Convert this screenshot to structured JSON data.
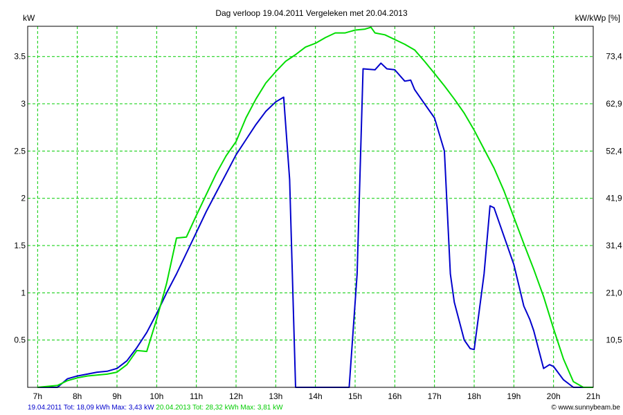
{
  "chart_data": {
    "type": "line",
    "title": "Dag  verloop 19.04.2011   Vergeleken met 20.04.2013",
    "ylabel_left": "kW",
    "ylabel_right": "kW/kWp [%]",
    "xlabel": "",
    "xlim": [
      6.75,
      21
    ],
    "ylim": [
      0,
      3.82
    ],
    "grid": true,
    "grid_color": "#00cc00",
    "x_ticks": [
      7,
      8,
      9,
      10,
      11,
      12,
      13,
      14,
      15,
      16,
      17,
      18,
      19,
      20,
      21
    ],
    "x_tick_labels": [
      "7h",
      "8h",
      "9h",
      "10h",
      "11h",
      "12h",
      "13h",
      "14h",
      "15h",
      "16h",
      "17h",
      "18h",
      "19h",
      "20h",
      "21h"
    ],
    "y_ticks": [
      0.5,
      1,
      1.5,
      2,
      2.5,
      3,
      3.5
    ],
    "y_tick_labels": [
      "0.5",
      "1",
      "1.5",
      "2",
      "2.5",
      "3",
      "3.5"
    ],
    "y_right_tick_labels": [
      "10,5",
      "21,0",
      "31,4",
      "41,9",
      "52,4",
      "62,9",
      "73,4"
    ],
    "series": [
      {
        "name": "19.04.2011",
        "color": "#0000cc",
        "x": [
          7.0,
          7.5,
          7.75,
          8.0,
          8.25,
          8.5,
          8.75,
          9.0,
          9.25,
          9.5,
          9.75,
          10.0,
          10.25,
          10.5,
          10.75,
          11.0,
          11.25,
          11.5,
          11.75,
          12.0,
          12.25,
          12.5,
          12.75,
          13.0,
          13.2,
          13.35,
          13.5,
          14.0,
          14.5,
          14.85,
          15.05,
          15.2,
          15.5,
          15.65,
          15.8,
          16.0,
          16.25,
          16.4,
          16.5,
          16.75,
          17.0,
          17.25,
          17.4,
          17.5,
          17.75,
          17.9,
          18.0,
          18.25,
          18.4,
          18.5,
          18.75,
          19.0,
          19.25,
          19.4,
          19.5,
          19.75,
          19.9,
          20.0,
          20.25,
          20.5,
          20.75
        ],
        "y": [
          0.0,
          0.0,
          0.09,
          0.12,
          0.14,
          0.16,
          0.17,
          0.2,
          0.28,
          0.42,
          0.58,
          0.78,
          1.0,
          1.2,
          1.42,
          1.64,
          1.86,
          2.06,
          2.26,
          2.46,
          2.62,
          2.78,
          2.92,
          3.02,
          3.07,
          2.2,
          0.0,
          0.0,
          0.0,
          0.0,
          1.2,
          3.37,
          3.36,
          3.43,
          3.37,
          3.36,
          3.24,
          3.25,
          3.15,
          3.0,
          2.85,
          2.5,
          1.2,
          0.9,
          0.5,
          0.41,
          0.4,
          1.2,
          1.92,
          1.9,
          1.6,
          1.3,
          0.86,
          0.72,
          0.6,
          0.2,
          0.24,
          0.22,
          0.08,
          0.0,
          0.0
        ]
      },
      {
        "name": "20.04.2013",
        "color": "#00dd00",
        "x": [
          7.0,
          7.5,
          7.75,
          8.0,
          8.25,
          8.5,
          8.75,
          9.0,
          9.25,
          9.5,
          9.75,
          10.0,
          10.25,
          10.5,
          10.75,
          11.0,
          11.25,
          11.5,
          11.75,
          12.0,
          12.25,
          12.5,
          12.75,
          13.0,
          13.25,
          13.5,
          13.75,
          14.0,
          14.25,
          14.5,
          14.75,
          15.0,
          15.25,
          15.4,
          15.5,
          15.75,
          16.0,
          16.25,
          16.5,
          16.75,
          17.0,
          17.25,
          17.5,
          17.75,
          18.0,
          18.25,
          18.5,
          18.75,
          19.0,
          19.25,
          19.5,
          19.75,
          20.0,
          20.25,
          20.5,
          20.75,
          21.0
        ],
        "y": [
          0.0,
          0.02,
          0.07,
          0.1,
          0.12,
          0.13,
          0.14,
          0.16,
          0.24,
          0.39,
          0.38,
          0.72,
          1.1,
          1.58,
          1.59,
          1.82,
          2.04,
          2.26,
          2.45,
          2.6,
          2.85,
          3.05,
          3.22,
          3.34,
          3.45,
          3.52,
          3.6,
          3.64,
          3.7,
          3.75,
          3.75,
          3.78,
          3.79,
          3.81,
          3.75,
          3.73,
          3.68,
          3.63,
          3.57,
          3.45,
          3.32,
          3.19,
          3.05,
          2.9,
          2.72,
          2.52,
          2.32,
          2.08,
          1.8,
          1.52,
          1.25,
          0.96,
          0.62,
          0.3,
          0.06,
          0.0,
          0.0
        ]
      }
    ],
    "legend_placement": "bottom-left",
    "footer_items": [
      {
        "text": "19.04.2011 Tot: 18,09 kWh Max: 3,43 kW",
        "color": "#0000cc"
      },
      {
        "text": "20.04.2013 Tot: 28,32 kWh Max: 3,81 kW",
        "color": "#00cc00"
      }
    ],
    "credit": "© www.sunnybeam.be"
  }
}
